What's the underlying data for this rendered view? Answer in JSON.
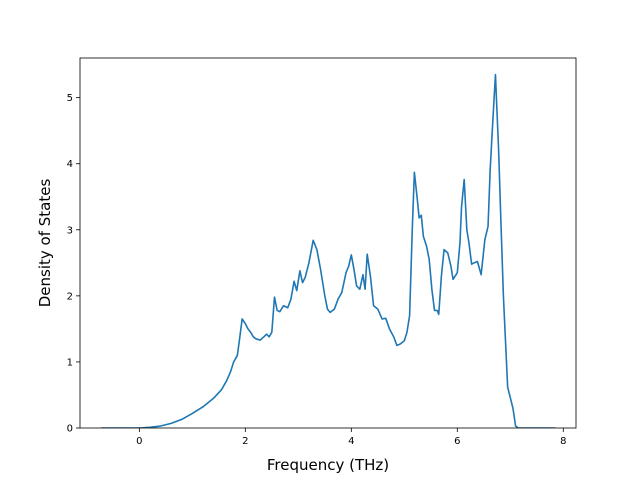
{
  "chart_data": {
    "type": "line",
    "title": "",
    "xlabel": "Frequency (THz)",
    "ylabel": "Density of States",
    "xlim": [
      -1.12,
      8.24
    ],
    "ylim": [
      0,
      5.6
    ],
    "xticks": [
      0,
      2,
      4,
      6,
      8
    ],
    "yticks": [
      0,
      1,
      2,
      3,
      4,
      5
    ],
    "grid": false,
    "legend": "none",
    "line_color": "#1f77b4",
    "series": [
      {
        "values": [
          [
            -0.72,
            0.0
          ],
          [
            -0.3,
            0.0
          ],
          [
            0.0,
            0.0
          ],
          [
            0.2,
            0.01
          ],
          [
            0.4,
            0.03
          ],
          [
            0.6,
            0.07
          ],
          [
            0.8,
            0.13
          ],
          [
            1.0,
            0.22
          ],
          [
            1.2,
            0.32
          ],
          [
            1.4,
            0.45
          ],
          [
            1.55,
            0.58
          ],
          [
            1.65,
            0.72
          ],
          [
            1.72,
            0.85
          ],
          [
            1.78,
            1.0
          ],
          [
            1.85,
            1.1
          ],
          [
            1.9,
            1.4
          ],
          [
            1.94,
            1.65
          ],
          [
            2.0,
            1.58
          ],
          [
            2.05,
            1.5
          ],
          [
            2.1,
            1.45
          ],
          [
            2.15,
            1.38
          ],
          [
            2.2,
            1.35
          ],
          [
            2.28,
            1.33
          ],
          [
            2.35,
            1.38
          ],
          [
            2.4,
            1.42
          ],
          [
            2.45,
            1.38
          ],
          [
            2.5,
            1.45
          ],
          [
            2.55,
            1.98
          ],
          [
            2.6,
            1.78
          ],
          [
            2.65,
            1.76
          ],
          [
            2.72,
            1.85
          ],
          [
            2.8,
            1.82
          ],
          [
            2.86,
            1.95
          ],
          [
            2.92,
            2.22
          ],
          [
            2.97,
            2.08
          ],
          [
            3.03,
            2.38
          ],
          [
            3.08,
            2.2
          ],
          [
            3.13,
            2.28
          ],
          [
            3.2,
            2.5
          ],
          [
            3.28,
            2.84
          ],
          [
            3.35,
            2.7
          ],
          [
            3.42,
            2.4
          ],
          [
            3.5,
            2.0
          ],
          [
            3.55,
            1.8
          ],
          [
            3.6,
            1.75
          ],
          [
            3.68,
            1.8
          ],
          [
            3.75,
            1.95
          ],
          [
            3.82,
            2.05
          ],
          [
            3.9,
            2.35
          ],
          [
            3.95,
            2.45
          ],
          [
            4.0,
            2.62
          ],
          [
            4.05,
            2.4
          ],
          [
            4.1,
            2.15
          ],
          [
            4.16,
            2.1
          ],
          [
            4.22,
            2.32
          ],
          [
            4.26,
            2.1
          ],
          [
            4.3,
            2.63
          ],
          [
            4.36,
            2.3
          ],
          [
            4.42,
            1.85
          ],
          [
            4.5,
            1.8
          ],
          [
            4.58,
            1.65
          ],
          [
            4.65,
            1.66
          ],
          [
            4.72,
            1.5
          ],
          [
            4.8,
            1.38
          ],
          [
            4.86,
            1.25
          ],
          [
            4.92,
            1.27
          ],
          [
            5.0,
            1.32
          ],
          [
            5.05,
            1.45
          ],
          [
            5.1,
            1.7
          ],
          [
            5.15,
            3.0
          ],
          [
            5.19,
            3.87
          ],
          [
            5.24,
            3.5
          ],
          [
            5.28,
            3.18
          ],
          [
            5.32,
            3.22
          ],
          [
            5.36,
            2.9
          ],
          [
            5.42,
            2.75
          ],
          [
            5.47,
            2.55
          ],
          [
            5.52,
            2.1
          ],
          [
            5.57,
            1.78
          ],
          [
            5.62,
            1.78
          ],
          [
            5.65,
            1.72
          ],
          [
            5.7,
            2.3
          ],
          [
            5.75,
            2.7
          ],
          [
            5.82,
            2.65
          ],
          [
            5.88,
            2.45
          ],
          [
            5.92,
            2.25
          ],
          [
            6.0,
            2.35
          ],
          [
            6.05,
            2.8
          ],
          [
            6.08,
            3.35
          ],
          [
            6.13,
            3.76
          ],
          [
            6.18,
            3.0
          ],
          [
            6.22,
            2.8
          ],
          [
            6.27,
            2.48
          ],
          [
            6.32,
            2.5
          ],
          [
            6.38,
            2.52
          ],
          [
            6.45,
            2.32
          ],
          [
            6.52,
            2.85
          ],
          [
            6.58,
            3.05
          ],
          [
            6.62,
            3.9
          ],
          [
            6.66,
            4.5
          ],
          [
            6.72,
            5.35
          ],
          [
            6.78,
            4.2
          ],
          [
            6.82,
            3.2
          ],
          [
            6.87,
            2.0
          ],
          [
            6.95,
            0.62
          ],
          [
            7.05,
            0.3
          ],
          [
            7.1,
            0.03
          ],
          [
            7.15,
            0.0
          ],
          [
            7.5,
            0.0
          ],
          [
            7.85,
            0.0
          ]
        ]
      }
    ]
  }
}
